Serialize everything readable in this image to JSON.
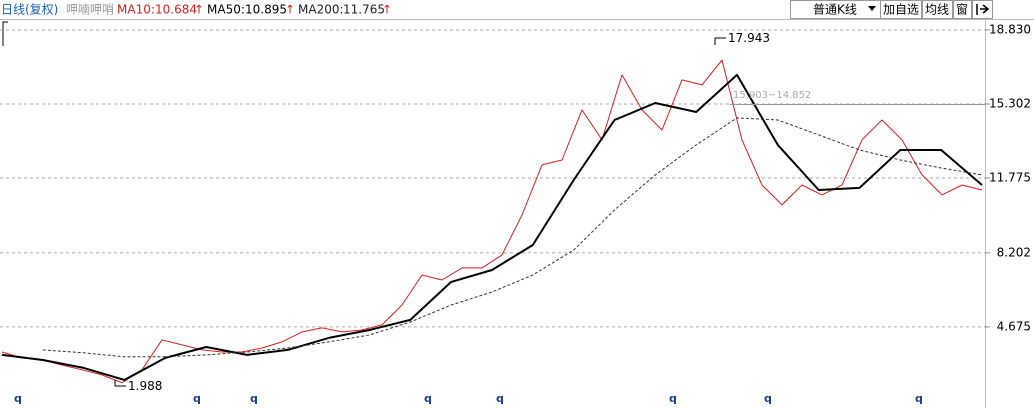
{
  "toolbar": {
    "period": "日线(复权)",
    "name": "呷喃呷哨",
    "ma": [
      {
        "label": "MA10:",
        "value": "10.684",
        "arrow": "↑"
      },
      {
        "label": "MA50:",
        "value": "10.895",
        "arrow": "↑"
      },
      {
        "label": "MA200:",
        "value": "11.765",
        "arrow": "↑"
      }
    ],
    "buttons": [
      "普通K线",
      "加自选",
      "均线",
      "窗"
    ]
  },
  "chart_data": {
    "type": "line",
    "ylim": [
      1.43,
      19.4
    ],
    "yticks": [
      {
        "value": 18.83,
        "label": "18.830"
      },
      15.302,
      11.775,
      8.202,
      4.675
    ],
    "grid": true,
    "series": [
      {
        "name": "K线",
        "color": "#d42020",
        "width": 1,
        "values": [
          3.48,
          3.2,
          3.1,
          2.86,
          2.63,
          2.39,
          2.01,
          2.63,
          4.06,
          3.82,
          3.58,
          3.48,
          3.48,
          3.67,
          3.96,
          4.44,
          4.63,
          4.44,
          4.53,
          4.77,
          5.72,
          7.15,
          6.91,
          7.49,
          7.49,
          8.11,
          10.01,
          12.4,
          12.63,
          15.02,
          13.59,
          16.69,
          15.02,
          14.06,
          16.45,
          16.21,
          17.4,
          13.59,
          11.44,
          10.49,
          11.44,
          10.97,
          11.44,
          13.59,
          14.54,
          13.59,
          11.92,
          10.97,
          11.44,
          11.2
        ]
      },
      {
        "name": "MA50",
        "color": "#000000",
        "width": 2,
        "values": [
          3.34,
          3.1,
          2.72,
          2.15,
          3.2,
          3.72,
          3.34,
          3.58,
          4.15,
          4.53,
          5.01,
          6.82,
          7.39,
          8.58,
          11.68,
          14.54,
          15.35,
          14.92,
          16.69,
          13.35,
          11.2,
          11.3,
          13.11,
          13.11,
          11.44
        ]
      },
      {
        "name": "MA200",
        "color": "#333333",
        "width": 1,
        "dash": "3,2",
        "values": [
          null,
          3.58,
          3.44,
          3.25,
          3.25,
          3.34,
          3.48,
          3.67,
          3.96,
          4.29,
          4.91,
          5.72,
          6.34,
          7.15,
          8.34,
          10.25,
          11.92,
          13.35,
          14.64,
          14.54,
          13.83,
          13.11,
          12.63,
          12.25,
          11.92
        ]
      }
    ],
    "annotations": [
      "17.943",
      "1.988",
      "15.903~14.852"
    ],
    "markers": [
      "q",
      "q",
      "q",
      "q",
      "q",
      "q",
      "q",
      "q"
    ]
  }
}
